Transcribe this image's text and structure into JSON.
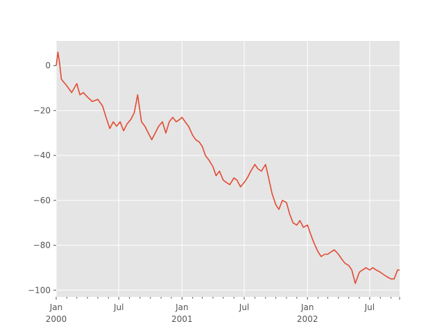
{
  "chart_data": {
    "type": "line",
    "title": "",
    "xlabel": "",
    "ylabel": "",
    "grid": true,
    "legend": "none",
    "xlim": [
      "2000-01-01",
      "2002-09-26"
    ],
    "ylim": [
      -103,
      11
    ],
    "y_ticks": [
      {
        "value": 0,
        "label": "0"
      },
      {
        "value": -20,
        "label": "−20"
      },
      {
        "value": -40,
        "label": "−40"
      },
      {
        "value": -60,
        "label": "−60"
      },
      {
        "value": -80,
        "label": "−80"
      },
      {
        "value": -100,
        "label": "−100"
      }
    ],
    "x_major_ticks": [
      {
        "date": "2000-01-01",
        "line1": "Jan",
        "line2": "2000"
      },
      {
        "date": "2000-07-01",
        "line1": "Jul",
        "line2": ""
      },
      {
        "date": "2001-01-01",
        "line1": "Jan",
        "line2": "2001"
      },
      {
        "date": "2001-07-01",
        "line1": "Jul",
        "line2": ""
      },
      {
        "date": "2002-01-01",
        "line1": "Jan",
        "line2": "2002"
      },
      {
        "date": "2002-07-01",
        "line1": "Jul",
        "line2": ""
      }
    ],
    "series": [
      {
        "color": "#e24a33",
        "x": [
          "2000-01-01",
          "2000-01-06",
          "2000-01-11",
          "2000-01-16",
          "2000-01-21",
          "2000-02-01",
          "2000-02-15",
          "2000-03-01",
          "2000-03-10",
          "2000-03-20",
          "2000-04-01",
          "2000-04-15",
          "2000-05-01",
          "2000-05-15",
          "2000-05-25",
          "2000-06-05",
          "2000-06-15",
          "2000-06-25",
          "2000-07-05",
          "2000-07-15",
          "2000-07-25",
          "2000-08-05",
          "2000-08-15",
          "2000-08-25",
          "2000-09-05",
          "2000-09-15",
          "2000-09-25",
          "2000-10-05",
          "2000-10-15",
          "2000-10-25",
          "2000-11-05",
          "2000-11-15",
          "2000-11-25",
          "2000-12-05",
          "2000-12-15",
          "2000-12-25",
          "2001-01-01",
          "2001-01-10",
          "2001-01-20",
          "2001-02-01",
          "2001-02-10",
          "2001-02-20",
          "2001-03-01",
          "2001-03-10",
          "2001-03-20",
          "2001-04-01",
          "2001-04-10",
          "2001-04-20",
          "2001-05-01",
          "2001-05-10",
          "2001-05-20",
          "2001-06-01",
          "2001-06-10",
          "2001-06-20",
          "2001-07-01",
          "2001-07-10",
          "2001-07-20",
          "2001-08-01",
          "2001-08-10",
          "2001-08-20",
          "2001-09-01",
          "2001-09-10",
          "2001-09-20",
          "2001-10-01",
          "2001-10-10",
          "2001-10-20",
          "2001-11-01",
          "2001-11-10",
          "2001-11-20",
          "2001-12-01",
          "2001-12-10",
          "2001-12-20",
          "2002-01-01",
          "2002-01-10",
          "2002-01-20",
          "2002-02-01",
          "2002-02-10",
          "2002-02-20",
          "2002-03-01",
          "2002-03-10",
          "2002-03-20",
          "2002-04-01",
          "2002-04-10",
          "2002-04-20",
          "2002-05-01",
          "2002-05-10",
          "2002-05-20",
          "2002-06-01",
          "2002-06-10",
          "2002-06-20",
          "2002-07-01",
          "2002-07-10",
          "2002-07-20",
          "2002-08-01",
          "2002-08-10",
          "2002-08-20",
          "2002-09-01",
          "2002-09-10",
          "2002-09-20",
          "2002-09-26"
        ],
        "y": [
          0,
          6,
          1,
          -6,
          -7,
          -9,
          -12,
          -8,
          -13,
          -12,
          -14,
          -16,
          -15,
          -18,
          -23,
          -28,
          -25,
          -27,
          -25,
          -29,
          -26,
          -24,
          -21,
          -13,
          -25,
          -27,
          -30,
          -33,
          -30,
          -27,
          -25,
          -30,
          -25,
          -23,
          -25,
          -24,
          -23,
          -25,
          -27,
          -31,
          -33,
          -34,
          -36,
          -40,
          -42,
          -45,
          -49,
          -47,
          -51,
          -52,
          -53,
          -50,
          -51,
          -54,
          -52,
          -50,
          -47,
          -44,
          -46,
          -47,
          -44,
          -50,
          -57,
          -62,
          -64,
          -60,
          -61,
          -66,
          -70,
          -71,
          -69,
          -72,
          -71,
          -75,
          -79,
          -83,
          -85,
          -84,
          -84,
          -83,
          -82,
          -84,
          -86,
          -88,
          -89,
          -91,
          -97,
          -92,
          -91,
          -90,
          -91,
          -90,
          -91,
          -92,
          -93,
          -94,
          -95,
          -95,
          -91,
          -91
        ]
      }
    ]
  }
}
